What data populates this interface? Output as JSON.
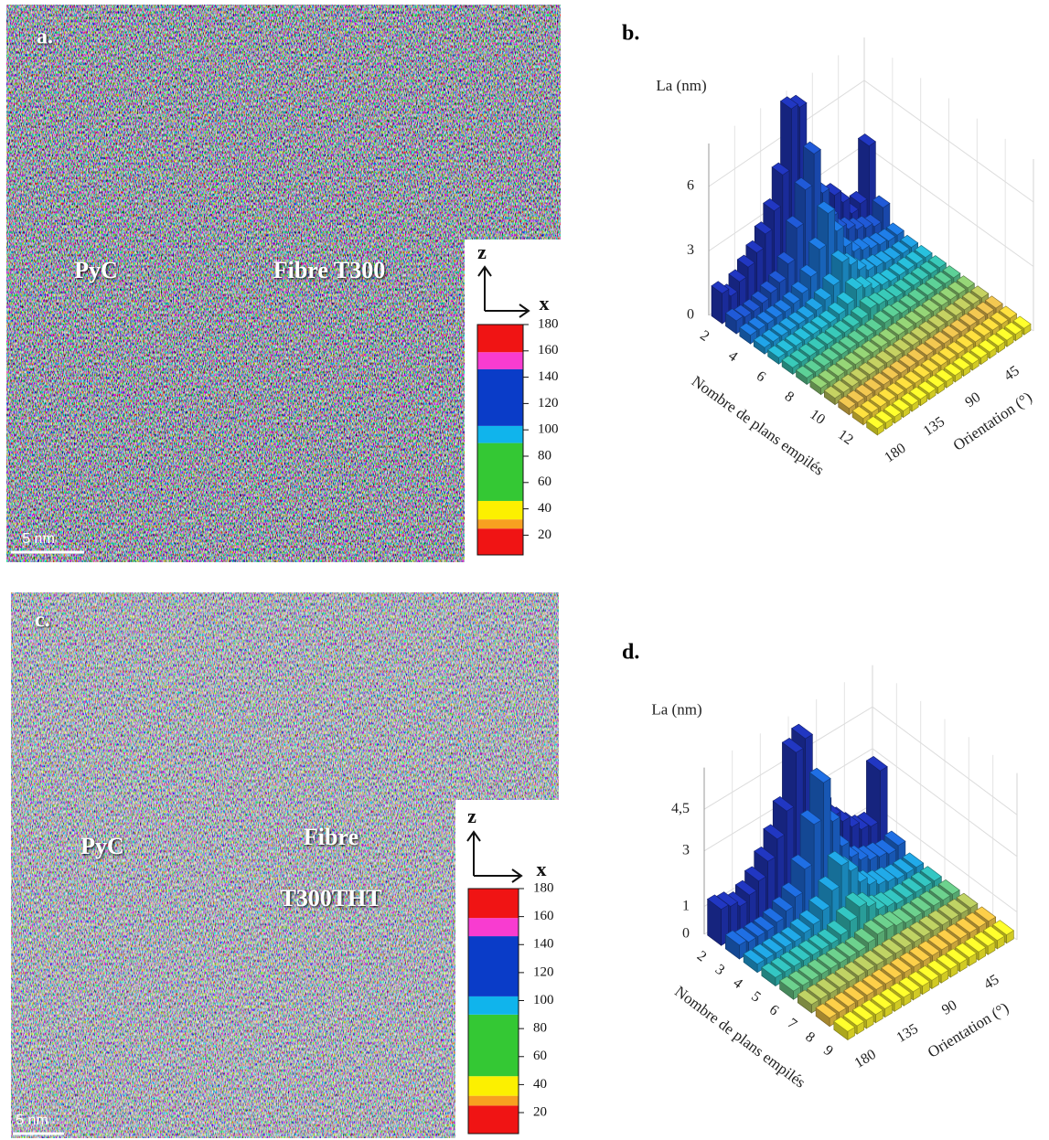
{
  "panels": [
    {
      "label": "a.",
      "labels": [
        "PyC",
        "Fibre T300"
      ],
      "scale_bar": "5 nm",
      "axes": {
        "z": "z",
        "x": "x"
      },
      "colorbar": {
        "clim": [
          5,
          180
        ],
        "ticks": [
          20,
          40,
          60,
          80,
          100,
          120,
          140,
          160,
          180
        ],
        "segments": [
          {
            "from": 5,
            "to": 25,
            "color": "#f01414"
          },
          {
            "from": 25,
            "to": 32,
            "color": "#f8a020"
          },
          {
            "from": 32,
            "to": 46,
            "color": "#fcf000"
          },
          {
            "from": 46,
            "to": 90,
            "color": "#34c834"
          },
          {
            "from": 90,
            "to": 103,
            "color": "#10b4ec"
          },
          {
            "from": 103,
            "to": 146,
            "color": "#0a3cc8"
          },
          {
            "from": 146,
            "to": 159,
            "color": "#f83cd0"
          },
          {
            "from": 159,
            "to": 180,
            "color": "#f01414"
          }
        ]
      }
    },
    {
      "label": "c.",
      "labels": [
        "PyC",
        "Fibre",
        "T300THT"
      ],
      "scale_bar": "5 nm",
      "axes": {
        "z": "z",
        "x": "x"
      },
      "colorbar": {
        "clim": [
          5,
          180
        ],
        "ticks": [
          20,
          40,
          60,
          80,
          100,
          120,
          140,
          160,
          180
        ],
        "segments": [
          {
            "from": 5,
            "to": 25,
            "color": "#f01414"
          },
          {
            "from": 25,
            "to": 32,
            "color": "#f8a020"
          },
          {
            "from": 32,
            "to": 46,
            "color": "#fcf000"
          },
          {
            "from": 46,
            "to": 90,
            "color": "#34c834"
          },
          {
            "from": 90,
            "to": 103,
            "color": "#10b4ec"
          },
          {
            "from": 103,
            "to": 146,
            "color": "#0a3cc8"
          },
          {
            "from": 146,
            "to": 159,
            "color": "#f83cd0"
          },
          {
            "from": 159,
            "to": 180,
            "color": "#f01414"
          }
        ]
      }
    }
  ],
  "chart_data": [
    {
      "type": "bar3d",
      "title": "b.",
      "zlabel": "La (nm)",
      "xlabel": "Nombre de plans empilés",
      "ylabel": "Orientation (°)",
      "x": [
        2,
        3,
        4,
        5,
        6,
        7,
        8,
        9,
        10,
        11,
        12,
        13
      ],
      "xticks": [
        2,
        4,
        6,
        8,
        10,
        12
      ],
      "y": [
        10,
        20,
        30,
        40,
        50,
        60,
        70,
        80,
        90,
        100,
        110,
        120,
        130,
        140,
        150,
        160,
        170,
        180
      ],
      "yticks": [
        45,
        90,
        135,
        180
      ],
      "zlim": [
        0,
        8
      ],
      "zticks": [
        0,
        3,
        6
      ],
      "grid": true,
      "colormap": [
        "#1f33b4",
        "#1c6fd8",
        "#20b0d8",
        "#3cbf9a",
        "#9cc865",
        "#e8b848",
        "#f6ee2a"
      ],
      "values": [
        [
          3.6,
          1.2,
          1.0,
          1.8,
          2.4,
          1.6,
          3.2,
          4.8,
          7.6,
          7.8,
          5.0,
          3.6,
          2.8,
          2.2,
          1.8,
          1.4,
          1.0,
          1.4
        ],
        [
          1.2,
          0.6,
          0.8,
          1.0,
          1.3,
          1.6,
          2.4,
          3.8,
          5.9,
          4.5,
          3.0,
          1.6,
          1.0,
          0.8,
          0.6,
          0.5,
          0.5,
          0.6
        ],
        [
          0.4,
          0.4,
          0.5,
          0.6,
          0.8,
          1.0,
          1.5,
          2.5,
          3.6,
          2.2,
          1.2,
          0.7,
          0.5,
          0.4,
          0.4,
          0.4,
          0.4,
          0.4
        ],
        [
          0.3,
          0.3,
          0.3,
          0.4,
          0.5,
          0.6,
          0.9,
          1.4,
          1.8,
          1.0,
          0.6,
          0.4,
          0.3,
          0.3,
          0.3,
          0.3,
          0.3,
          0.3
        ],
        [
          0.3,
          0.3,
          0.3,
          0.3,
          0.3,
          0.4,
          0.5,
          0.8,
          1.0,
          0.6,
          0.4,
          0.3,
          0.3,
          0.3,
          0.3,
          0.3,
          0.3,
          0.3
        ],
        [
          0.3,
          0.3,
          0.3,
          0.3,
          0.3,
          0.3,
          0.4,
          0.5,
          0.6,
          0.4,
          0.3,
          0.3,
          0.3,
          0.3,
          0.3,
          0.3,
          0.3,
          0.3
        ],
        [
          0.3,
          0.3,
          0.3,
          0.3,
          0.3,
          0.3,
          0.3,
          0.4,
          0.4,
          0.3,
          0.3,
          0.3,
          0.3,
          0.3,
          0.3,
          0.3,
          0.3,
          0.3
        ],
        [
          0.3,
          0.3,
          0.3,
          0.3,
          0.3,
          0.3,
          0.3,
          0.3,
          0.3,
          0.3,
          0.3,
          0.3,
          0.3,
          0.3,
          0.3,
          0.3,
          0.3,
          0.3
        ],
        [
          0.3,
          0.3,
          0.3,
          0.3,
          0.3,
          0.3,
          0.3,
          0.3,
          0.3,
          0.3,
          0.3,
          0.3,
          0.3,
          0.3,
          0.3,
          0.3,
          0.3,
          0.3
        ],
        [
          0.3,
          0.3,
          0.3,
          0.3,
          0.3,
          0.3,
          0.3,
          0.3,
          0.3,
          0.3,
          0.3,
          0.3,
          0.3,
          0.3,
          0.3,
          0.3,
          0.3,
          0.3
        ],
        [
          0.3,
          0.3,
          0.3,
          0.3,
          0.3,
          0.3,
          0.3,
          0.3,
          0.3,
          0.3,
          0.3,
          0.3,
          0.3,
          0.3,
          0.3,
          0.3,
          0.3,
          0.3
        ],
        [
          0.3,
          0.3,
          0.3,
          0.3,
          0.3,
          0.3,
          0.3,
          0.3,
          0.3,
          0.3,
          0.3,
          0.3,
          0.3,
          0.3,
          0.3,
          0.3,
          0.3,
          0.3
        ]
      ]
    },
    {
      "type": "bar3d",
      "title": "d.",
      "zlabel": "La (nm)",
      "xlabel": "Nombre de plans empilés",
      "ylabel": "Orientation (°)",
      "x": [
        2,
        3,
        4,
        5,
        6,
        7,
        8,
        9
      ],
      "xticks": [
        2,
        3,
        4,
        5,
        6,
        7,
        8,
        9
      ],
      "y": [
        10,
        20,
        30,
        40,
        50,
        60,
        70,
        80,
        90,
        100,
        110,
        120,
        130,
        140,
        150,
        160,
        170,
        180
      ],
      "yticks": [
        45,
        90,
        135,
        180
      ],
      "zlim": [
        0,
        6
      ],
      "zticks": [
        0,
        1,
        3,
        {
          "value": 4.5,
          "label": "4,5"
        }
      ],
      "grid": true,
      "colormap": [
        "#1f33b4",
        "#1c6fd8",
        "#20b0d8",
        "#3cbf9a",
        "#9cc865",
        "#e8b848",
        "#f6ee2a"
      ],
      "values": [
        [
          2.8,
          1.0,
          1.1,
          1.4,
          1.8,
          2.2,
          2.9,
          3.8,
          5.6,
          5.3,
          3.4,
          2.6,
          2.0,
          1.5,
          1.2,
          1.0,
          1.2,
          1.3
        ],
        [
          0.6,
          0.5,
          0.6,
          0.7,
          0.9,
          1.2,
          1.8,
          2.9,
          4.5,
          3.2,
          1.8,
          1.0,
          0.7,
          0.5,
          0.4,
          0.4,
          0.4,
          0.5
        ],
        [
          0.3,
          0.3,
          0.3,
          0.4,
          0.5,
          0.7,
          1.0,
          1.6,
          2.0,
          1.3,
          0.8,
          0.5,
          0.4,
          0.3,
          0.3,
          0.3,
          0.3,
          0.3
        ],
        [
          0.3,
          0.3,
          0.3,
          0.3,
          0.3,
          0.4,
          0.5,
          0.8,
          1.0,
          0.7,
          0.4,
          0.3,
          0.3,
          0.3,
          0.3,
          0.3,
          0.3,
          0.3
        ],
        [
          0.3,
          0.3,
          0.3,
          0.3,
          0.3,
          0.3,
          0.4,
          0.5,
          0.5,
          0.4,
          0.3,
          0.3,
          0.3,
          0.3,
          0.3,
          0.3,
          0.3,
          0.3
        ],
        [
          0.3,
          0.3,
          0.3,
          0.3,
          0.3,
          0.3,
          0.3,
          0.3,
          0.3,
          0.3,
          0.3,
          0.3,
          0.3,
          0.3,
          0.3,
          0.3,
          0.3,
          0.3
        ],
        [
          0.3,
          0.3,
          0.3,
          0.3,
          0.3,
          0.3,
          0.3,
          0.3,
          0.3,
          0.3,
          0.3,
          0.3,
          0.3,
          0.3,
          0.3,
          0.3,
          0.3,
          0.3
        ],
        [
          0.3,
          0.3,
          0.3,
          0.3,
          0.3,
          0.3,
          0.3,
          0.3,
          0.3,
          0.3,
          0.3,
          0.3,
          0.3,
          0.3,
          0.3,
          0.3,
          0.3,
          0.3
        ]
      ]
    }
  ]
}
